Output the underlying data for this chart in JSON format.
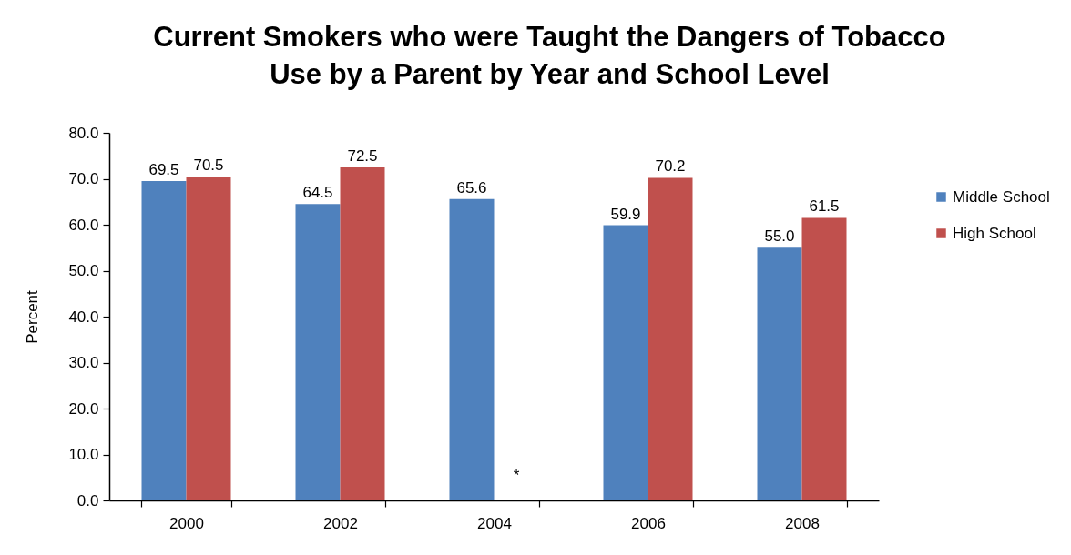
{
  "chart_data": {
    "type": "bar",
    "title": "Current Smokers who were Taught the Dangers of Tobacco Use by a Parent by Year and School Level",
    "ylabel": "Percent",
    "categories": [
      "2000",
      "2002",
      "2004",
      "2006",
      "2008"
    ],
    "series": [
      {
        "name": "Middle School",
        "color": "#4f81bd",
        "values": [
          69.5,
          64.5,
          65.6,
          59.9,
          55.0
        ],
        "value_labels": [
          "69.5",
          "64.5",
          "65.6",
          "59.9",
          "55.0"
        ]
      },
      {
        "name": "High School",
        "color": "#c0504d",
        "values": [
          70.5,
          72.5,
          null,
          70.2,
          61.5
        ],
        "value_labels": [
          "70.5",
          "72.5",
          "*",
          "70.2",
          "61.5"
        ]
      }
    ],
    "ylim": [
      0,
      80
    ],
    "yticks": [
      {
        "value": 0,
        "label": "0.0"
      },
      {
        "value": 10,
        "label": "10.0"
      },
      {
        "value": 20,
        "label": "20.0"
      },
      {
        "value": 30,
        "label": "30.0"
      },
      {
        "value": 40,
        "label": "40.0"
      },
      {
        "value": 50,
        "label": "50.0"
      },
      {
        "value": 60,
        "label": "60.0"
      },
      {
        "value": 70,
        "label": "70.0"
      },
      {
        "value": 80,
        "label": "80.0"
      }
    ],
    "legend": "right",
    "grid": false
  }
}
